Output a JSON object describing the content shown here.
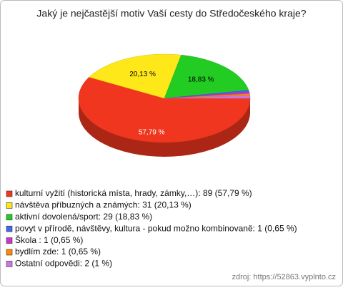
{
  "chart_data": {
    "type": "pie3d",
    "title": "Jaký je nejčastější motiv Vaší cesty do Středočeského kraje?",
    "categories": [
      "kulturní vyžití (historická místa, hrady, zámky,…): 89 (57,79 %)",
      "návštěva příbuzných a známých: 31 (20,13 %)",
      "aktivní dovolená/sport: 29 (18,83 %)",
      "povyt v přírodě, návštěvy, kultura - pokud možno kombinovaně: 1 (0,65 %)",
      "Škola : 1 (0,65 %)",
      "bydlím zde: 1 (0,65 %)",
      "Ostatní odpovědi: 2 (1 %)"
    ],
    "values": [
      57.79,
      20.13,
      18.83,
      0.65,
      0.65,
      0.65,
      1
    ],
    "value_labels": [
      "57,79 %",
      "20,13 %",
      "18,83 %",
      null,
      null,
      null,
      null
    ],
    "colors": [
      "#f0361e",
      "#ffe81a",
      "#22cc22",
      "#4466ee",
      "#cc33cc",
      "#ff8800",
      "#cc77dd"
    ],
    "source": "zdroj: https://52863.vyplnto.cz"
  }
}
